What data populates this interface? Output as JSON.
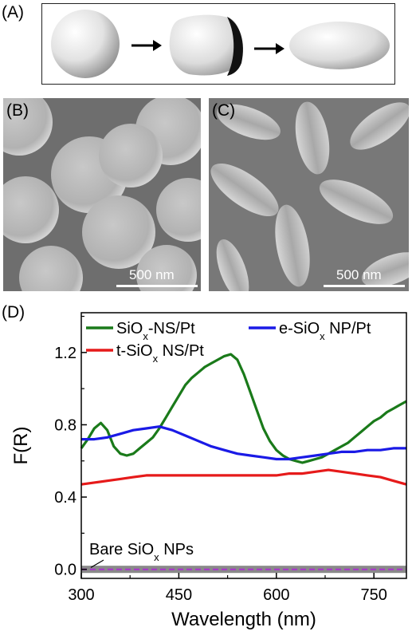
{
  "panels": {
    "a_label": "(A)",
    "b_label": "(B)",
    "c_label": "(C)",
    "d_label": "(D)"
  },
  "scale_bars": {
    "b": "500 nm",
    "c": "500 nm"
  },
  "chart_data": {
    "type": "line",
    "xlabel": "Wavelength (nm)",
    "ylabel": "F(R)",
    "xlim": [
      300,
      800
    ],
    "ylim": [
      -0.05,
      1.42
    ],
    "xticks": [
      300,
      450,
      600,
      750
    ],
    "yticks": [
      0.0,
      0.4,
      0.8,
      1.2
    ],
    "ytick_labels": [
      "0.0",
      "0.4",
      "0.8",
      "1.2"
    ],
    "series": [
      {
        "name": "SiOx-NS/Pt",
        "color": "#1a7a1a",
        "x": [
          300,
          310,
          320,
          330,
          340,
          350,
          360,
          370,
          380,
          390,
          400,
          410,
          420,
          430,
          440,
          450,
          460,
          470,
          480,
          490,
          500,
          510,
          520,
          530,
          540,
          550,
          560,
          570,
          580,
          590,
          600,
          610,
          620,
          630,
          640,
          650,
          660,
          670,
          680,
          690,
          700,
          710,
          720,
          730,
          740,
          750,
          760,
          770,
          780,
          790,
          800
        ],
        "y": [
          0.67,
          0.72,
          0.78,
          0.81,
          0.77,
          0.68,
          0.64,
          0.63,
          0.64,
          0.67,
          0.7,
          0.73,
          0.78,
          0.84,
          0.9,
          0.96,
          1.02,
          1.06,
          1.09,
          1.12,
          1.14,
          1.16,
          1.18,
          1.19,
          1.16,
          1.08,
          0.98,
          0.88,
          0.78,
          0.71,
          0.66,
          0.63,
          0.61,
          0.6,
          0.59,
          0.6,
          0.61,
          0.62,
          0.64,
          0.66,
          0.68,
          0.7,
          0.73,
          0.76,
          0.79,
          0.82,
          0.84,
          0.87,
          0.89,
          0.91,
          0.93
        ]
      },
      {
        "name": "e-SiOx NP/Pt",
        "color": "#1a1ae6",
        "x": [
          300,
          320,
          340,
          360,
          380,
          400,
          420,
          440,
          460,
          480,
          500,
          520,
          540,
          560,
          580,
          600,
          620,
          640,
          660,
          680,
          700,
          720,
          740,
          760,
          780,
          800
        ],
        "y": [
          0.72,
          0.72,
          0.73,
          0.75,
          0.77,
          0.78,
          0.79,
          0.77,
          0.74,
          0.71,
          0.68,
          0.66,
          0.64,
          0.63,
          0.62,
          0.61,
          0.61,
          0.62,
          0.63,
          0.64,
          0.65,
          0.65,
          0.66,
          0.66,
          0.67,
          0.67
        ]
      },
      {
        "name": "t-SiOx NS/Pt",
        "color": "#e61a1a",
        "x": [
          300,
          320,
          340,
          360,
          380,
          400,
          420,
          440,
          460,
          480,
          500,
          520,
          540,
          560,
          580,
          600,
          620,
          640,
          660,
          680,
          700,
          720,
          740,
          760,
          780,
          800
        ],
        "y": [
          0.47,
          0.48,
          0.49,
          0.5,
          0.51,
          0.52,
          0.52,
          0.52,
          0.52,
          0.52,
          0.52,
          0.52,
          0.52,
          0.52,
          0.52,
          0.52,
          0.53,
          0.53,
          0.54,
          0.55,
          0.54,
          0.53,
          0.52,
          0.51,
          0.49,
          0.47
        ]
      },
      {
        "name": "Bare SiOx NPs",
        "color": "#aa33cc",
        "x": [
          300,
          800
        ],
        "y": [
          0.0,
          0.0
        ]
      }
    ],
    "legend": [
      {
        "base": "SiO",
        "sub": "x",
        "rest": "-NS/Pt",
        "color": "#1a7a1a"
      },
      {
        "base": "e-SiO",
        "sub": "x",
        "rest": " NP/Pt",
        "color": "#1a1ae6"
      },
      {
        "base": "t-SiO",
        "sub": "x",
        "rest": " NS/Pt",
        "color": "#e61a1a"
      }
    ],
    "annotation": {
      "base": "Bare SiO",
      "sub": "x",
      "rest": " NPs"
    }
  },
  "colors": {
    "sem_background": "#7a7a7a",
    "bare_band": "#8a8a8a"
  }
}
